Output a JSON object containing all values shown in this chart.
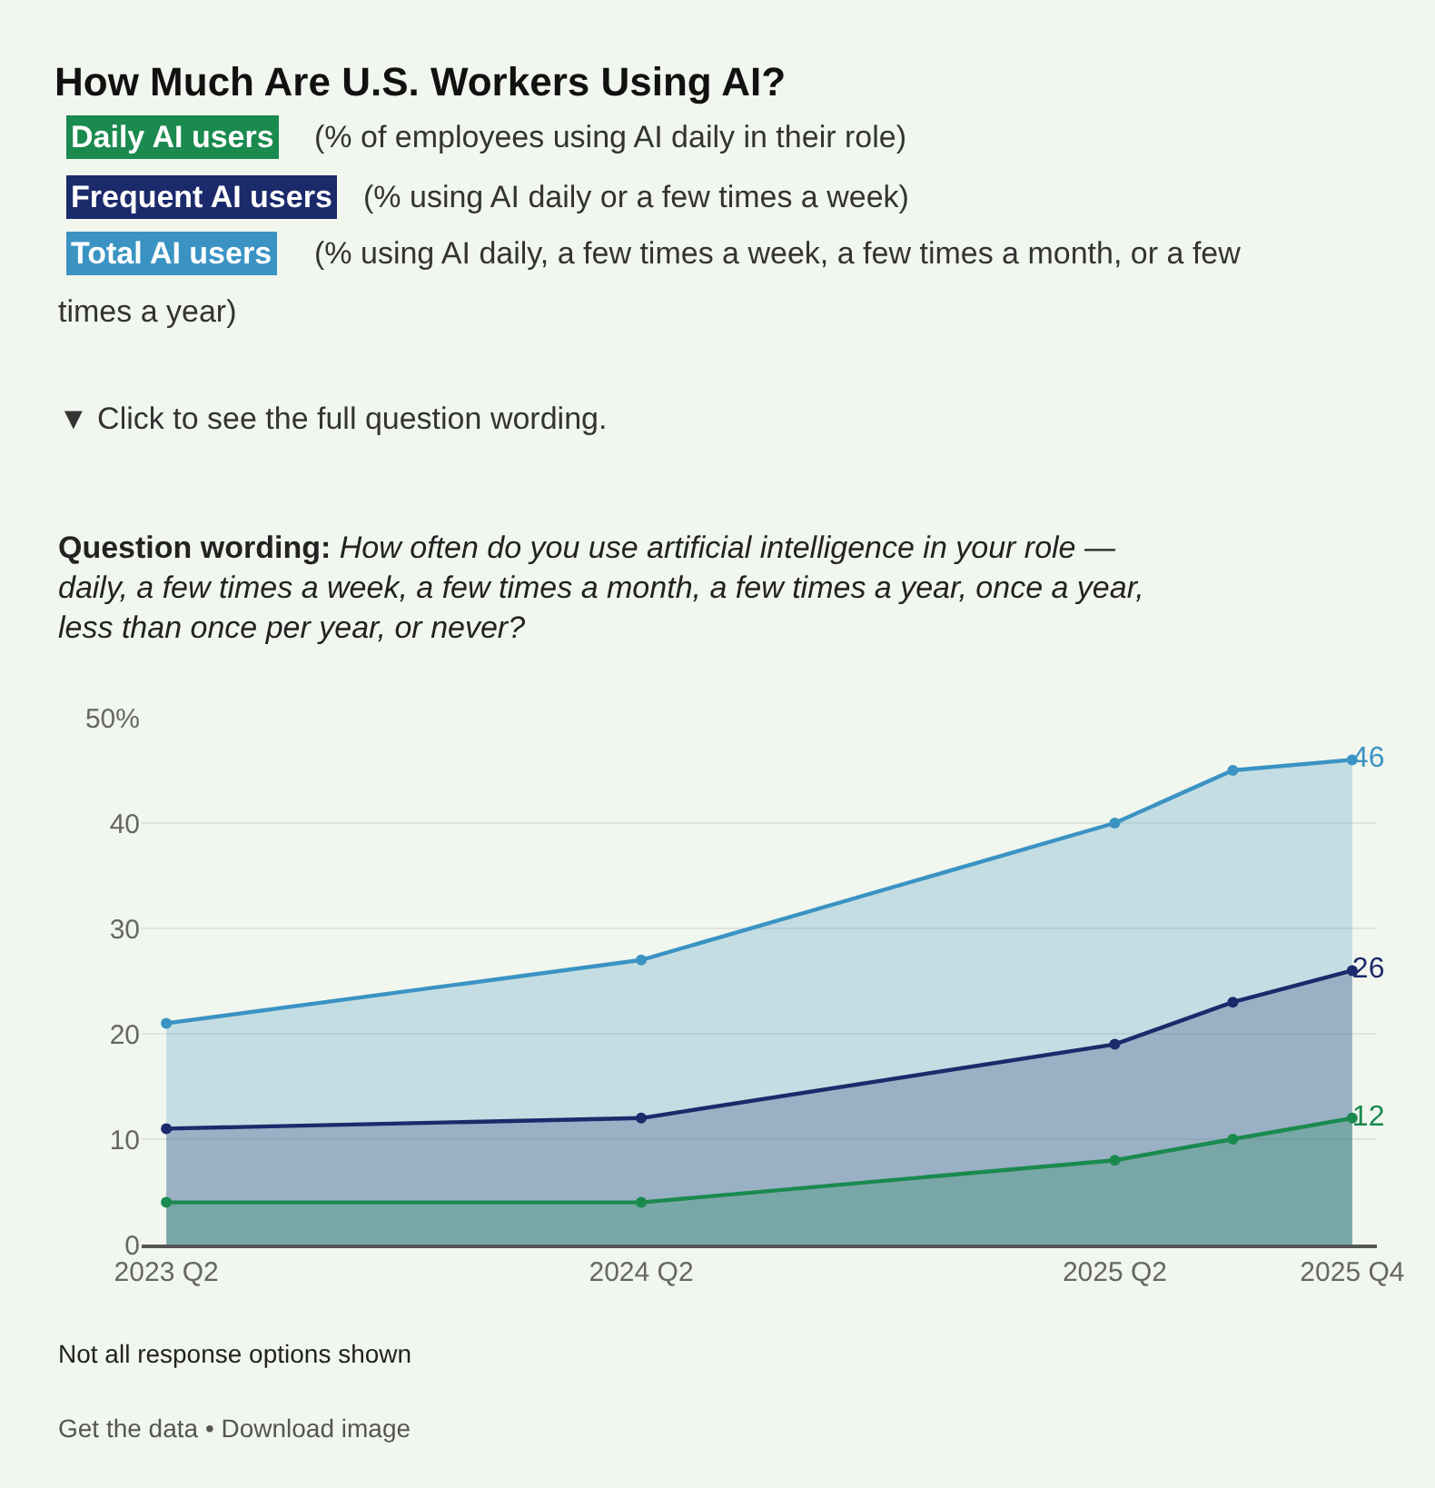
{
  "chart_data": {
    "type": "area",
    "title": "How Much Are U.S. Workers Using AI?",
    "x": [
      "2023-04",
      "2024-04",
      "2025-04",
      "2025-07",
      "2025-10"
    ],
    "series": [
      {
        "name": "Total AI users",
        "color": "#3a93c3",
        "values": [
          21,
          27,
          40,
          45,
          46
        ],
        "value_labels": [
          null,
          null,
          null,
          null,
          "46"
        ]
      },
      {
        "name": "Frequent AI users",
        "color": "#1b2a6b",
        "values": [
          11,
          12,
          19,
          23,
          26
        ],
        "value_labels": [
          null,
          null,
          null,
          null,
          "26"
        ]
      },
      {
        "name": "Daily AI users",
        "color": "#1a8a4e",
        "values": [
          4,
          4,
          8,
          10,
          12
        ],
        "value_labels": [
          null,
          null,
          null,
          null,
          "12"
        ]
      }
    ],
    "annotations": [
      "(% using AI daily, a few times a week, a few times a month, or a few times a year)",
      "(% using AI daily or a few times a week)",
      "(% of employees using AI daily in their role)",
      "▼ Click to see the full question wording.",
      "Question wording: How often do you use artificial intelligence in your role — daily, a few times a week, a few times a month, a few times a year, once a year, less than once per year, or never?",
      "Not all response options shown",
      "Get the data • Download image"
    ],
    "xlim": [
      "2023-03-13",
      "2025-10-20"
    ],
    "xticks": [
      {
        "value": "2023-04",
        "label": "2023 Q2"
      },
      {
        "value": "2024-04",
        "label": "2024 Q2"
      },
      {
        "value": "2025-04",
        "label": "2025 Q2"
      },
      {
        "value": "2025-10",
        "label": "2025 Q4"
      }
    ],
    "ylim": [
      0,
      50
    ],
    "yticks": [
      0,
      10,
      20,
      30,
      40,
      {
        "value": 50,
        "label": "50%"
      }
    ],
    "grid": "y",
    "legend": false,
    "marker": "circle",
    "line_style": "solid"
  }
}
